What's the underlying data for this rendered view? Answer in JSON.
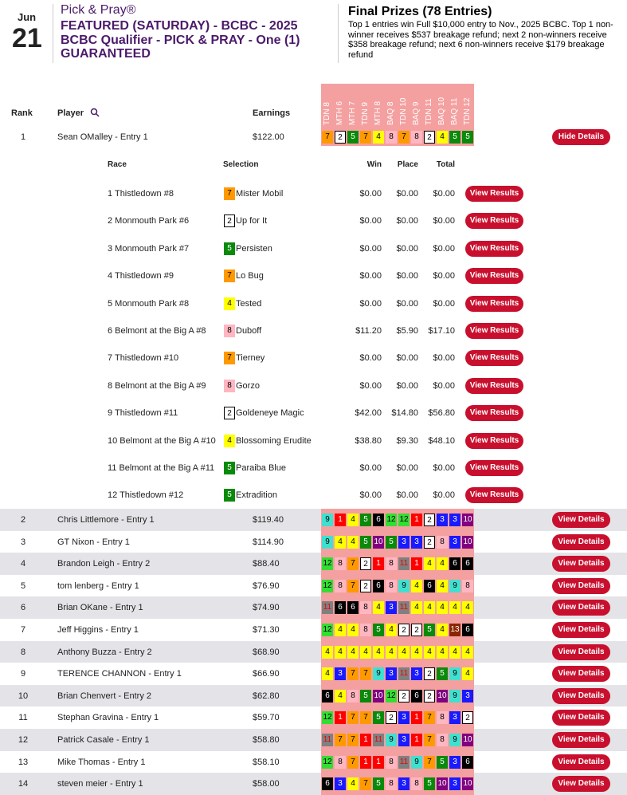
{
  "header": {
    "month": "Jun",
    "day": "21",
    "brand": "Pick & Pray®",
    "title": "FEATURED (SATURDAY) - BCBC - 2025 BCBC Qualifier - PICK & PRAY - One (1) GUARANTEED",
    "prizes_title": "Final Prizes (78 Entries)",
    "prizes_text": "Top 1 entries win Full $10,000 entry to Nov., 2025 BCBC. Top 1 non-winner receives $537 breakage refund; next 2 non-winners receive $358 breakage refund; next 6 non-winners receive $179 breakage refund"
  },
  "table": {
    "columns": [
      "Rank",
      "Player",
      "Earnings"
    ],
    "races": [
      "TDN 8",
      "MTH 6",
      "MTH 7",
      "TDN 9",
      "MTH 8",
      "BAQ 8",
      "TDN 10",
      "BAQ 9",
      "TDN 11",
      "BAQ 10",
      "BAQ 11",
      "TDN 12"
    ],
    "rows": [
      {
        "rank": 1,
        "player": "Sean OMalley - Entry 1",
        "earnings": "$122.00",
        "picks": [
          7,
          2,
          5,
          7,
          4,
          8,
          7,
          8,
          2,
          4,
          5,
          5
        ],
        "button": "Hide Details"
      },
      {
        "rank": 2,
        "player": "Chris Littlemore - Entry 1",
        "earnings": "$119.40",
        "picks": [
          9,
          1,
          4,
          5,
          6,
          12,
          12,
          1,
          2,
          3,
          3,
          10
        ],
        "button": "View Details"
      },
      {
        "rank": 3,
        "player": "GT Nixon - Entry 1",
        "earnings": "$114.90",
        "picks": [
          9,
          4,
          4,
          5,
          10,
          5,
          3,
          3,
          2,
          8,
          3,
          10
        ],
        "button": "View Details"
      },
      {
        "rank": 4,
        "player": "Brandon Leigh - Entry 2",
        "earnings": "$88.40",
        "picks": [
          12,
          8,
          7,
          2,
          1,
          8,
          11,
          1,
          4,
          4,
          6,
          6
        ],
        "button": "View Details"
      },
      {
        "rank": 5,
        "player": "tom lenberg - Entry 1",
        "earnings": "$76.90",
        "picks": [
          12,
          8,
          7,
          2,
          6,
          8,
          9,
          4,
          6,
          4,
          9,
          8
        ],
        "button": "View Details"
      },
      {
        "rank": 6,
        "player": "Brian OKane - Entry 1",
        "earnings": "$74.90",
        "picks": [
          11,
          6,
          6,
          8,
          4,
          3,
          11,
          4,
          4,
          4,
          4,
          4
        ],
        "button": "View Details"
      },
      {
        "rank": 7,
        "player": "Jeff Higgins - Entry 1",
        "earnings": "$71.30",
        "picks": [
          12,
          4,
          4,
          8,
          5,
          4,
          2,
          2,
          5,
          4,
          13,
          6
        ],
        "button": "View Details"
      },
      {
        "rank": 8,
        "player": "Anthony Buzza - Entry 2",
        "earnings": "$68.90",
        "picks": [
          4,
          4,
          4,
          4,
          4,
          4,
          4,
          4,
          4,
          4,
          4,
          4
        ],
        "button": "View Details"
      },
      {
        "rank": 9,
        "player": "TERENCE CHANNON - Entry 1",
        "earnings": "$66.90",
        "picks": [
          4,
          3,
          7,
          7,
          9,
          3,
          11,
          3,
          2,
          5,
          9,
          4
        ],
        "button": "View Details"
      },
      {
        "rank": 10,
        "player": "Brian Chenvert - Entry 2",
        "earnings": "$62.80",
        "picks": [
          6,
          4,
          8,
          5,
          10,
          12,
          2,
          6,
          2,
          10,
          9,
          3
        ],
        "button": "View Details"
      },
      {
        "rank": 11,
        "player": "Stephan Gravina - Entry 1",
        "earnings": "$59.70",
        "picks": [
          12,
          1,
          7,
          7,
          5,
          2,
          3,
          1,
          7,
          8,
          3,
          2
        ],
        "button": "View Details"
      },
      {
        "rank": 12,
        "player": "Patrick Casale - Entry 1",
        "earnings": "$58.80",
        "picks": [
          11,
          7,
          7,
          1,
          11,
          9,
          3,
          1,
          7,
          8,
          9,
          10
        ],
        "button": "View Details"
      },
      {
        "rank": 13,
        "player": "Mike Thomas - Entry 1",
        "earnings": "$58.10",
        "picks": [
          12,
          8,
          7,
          1,
          1,
          8,
          11,
          9,
          7,
          5,
          3,
          6
        ],
        "button": "View Details"
      },
      {
        "rank": 14,
        "player": "steven meier - Entry 1",
        "earnings": "$58.00",
        "picks": [
          6,
          3,
          4,
          7,
          5,
          8,
          3,
          8,
          5,
          10,
          3,
          10
        ],
        "button": "View Details"
      }
    ]
  },
  "details": {
    "columns": [
      "Race",
      "Selection",
      "Win",
      "Place",
      "Total"
    ],
    "rows": [
      {
        "race": "1 Thistledown #8",
        "pick": 7,
        "horse": "Mister Mobil",
        "win": "$0.00",
        "place": "$0.00",
        "total": "$0.00",
        "button": "View Results"
      },
      {
        "race": "2 Monmouth Park #6",
        "pick": 2,
        "horse": "Up for It",
        "win": "$0.00",
        "place": "$0.00",
        "total": "$0.00",
        "button": "View Results"
      },
      {
        "race": "3 Monmouth Park #7",
        "pick": 5,
        "horse": "Persisten",
        "win": "$0.00",
        "place": "$0.00",
        "total": "$0.00",
        "button": "View Results"
      },
      {
        "race": "4 Thistledown #9",
        "pick": 7,
        "horse": "Lo Bug",
        "win": "$0.00",
        "place": "$0.00",
        "total": "$0.00",
        "button": "View Results"
      },
      {
        "race": "5 Monmouth Park #8",
        "pick": 4,
        "horse": "Tested",
        "win": "$0.00",
        "place": "$0.00",
        "total": "$0.00",
        "button": "View Results"
      },
      {
        "race": "6 Belmont at the Big A #8",
        "pick": 8,
        "horse": "Duboff",
        "win": "$11.20",
        "place": "$5.90",
        "total": "$17.10",
        "button": "View Results"
      },
      {
        "race": "7 Thistledown #10",
        "pick": 7,
        "horse": "Tierney",
        "win": "$0.00",
        "place": "$0.00",
        "total": "$0.00",
        "button": "View Results"
      },
      {
        "race": "8 Belmont at the Big A #9",
        "pick": 8,
        "horse": "Gorzo",
        "win": "$0.00",
        "place": "$0.00",
        "total": "$0.00",
        "button": "View Results"
      },
      {
        "race": "9 Thistledown #11",
        "pick": 2,
        "horse": "Goldeneye Magic",
        "win": "$42.00",
        "place": "$14.80",
        "total": "$56.80",
        "button": "View Results"
      },
      {
        "race": "10 Belmont at the Big A #10",
        "pick": 4,
        "horse": "Blossoming Erudite",
        "win": "$38.80",
        "place": "$9.30",
        "total": "$48.10",
        "button": "View Results"
      },
      {
        "race": "11 Belmont at the Big A #11",
        "pick": 5,
        "horse": "Paraiba Blue",
        "win": "$0.00",
        "place": "$0.00",
        "total": "$0.00",
        "button": "View Results"
      },
      {
        "race": "12 Thistledown #12",
        "pick": 5,
        "horse": "Extradition",
        "win": "$0.00",
        "place": "$0.00",
        "total": "$0.00",
        "button": "View Results"
      }
    ]
  }
}
